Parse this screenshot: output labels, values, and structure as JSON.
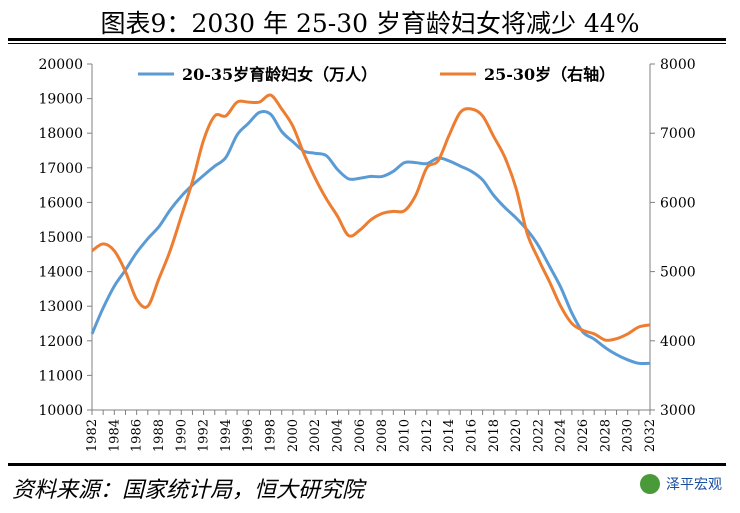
{
  "title": "图表9：2030 年 25-30 岁育龄妇女将减少 44%",
  "source": "资料来源：国家统计局，恒大研究院",
  "brand": {
    "name": "泽平宏观",
    "icon": "wechat-badge-icon"
  },
  "colors": {
    "left_series": "#5b9bd5",
    "right_series": "#ed7d31",
    "axis": "#808080"
  },
  "chart_data": {
    "type": "line",
    "x": [
      1982,
      1983,
      1984,
      1985,
      1986,
      1987,
      1988,
      1989,
      1990,
      1991,
      1992,
      1993,
      1994,
      1995,
      1996,
      1997,
      1998,
      1999,
      2000,
      2001,
      2002,
      2003,
      2004,
      2005,
      2006,
      2007,
      2008,
      2009,
      2010,
      2011,
      2012,
      2013,
      2014,
      2015,
      2016,
      2017,
      2018,
      2019,
      2020,
      2021,
      2022,
      2023,
      2024,
      2025,
      2026,
      2027,
      2028,
      2029,
      2030,
      2031,
      2032
    ],
    "x_ticks": [
      "1982",
      "1984",
      "1986",
      "1988",
      "1990",
      "1992",
      "1994",
      "1996",
      "1998",
      "2000",
      "2002",
      "2004",
      "2006",
      "2008",
      "2010",
      "2012",
      "2014",
      "2016",
      "2018",
      "2020",
      "2022",
      "2024",
      "2026",
      "2028",
      "2030",
      "2032"
    ],
    "y_left_ticks": [
      "10000",
      "11000",
      "12000",
      "13000",
      "14000",
      "15000",
      "16000",
      "17000",
      "18000",
      "19000",
      "20000"
    ],
    "y_right_ticks": [
      "3000",
      "4000",
      "5000",
      "6000",
      "7000",
      "8000"
    ],
    "ylim_left": [
      10000,
      20000
    ],
    "ylim_right": [
      3000,
      8000
    ],
    "legend_position": "top",
    "series": [
      {
        "name": "20-35岁育龄妇女（万人）",
        "axis": "left",
        "values": [
          12200,
          12950,
          13580,
          14050,
          14550,
          14950,
          15300,
          15780,
          16180,
          16500,
          16780,
          17050,
          17300,
          17950,
          18280,
          18600,
          18550,
          18050,
          17750,
          17480,
          17420,
          17350,
          16950,
          16680,
          16700,
          16750,
          16750,
          16900,
          17150,
          17150,
          17120,
          17280,
          17200,
          17050,
          16900,
          16650,
          16200,
          15850,
          15550,
          15200,
          14750,
          14150,
          13550,
          12800,
          12250,
          12050,
          11800,
          11600,
          11450,
          11350,
          11350
        ]
      },
      {
        "name": "25-30岁（右轴）",
        "axis": "right",
        "values": [
          5300,
          5400,
          5300,
          5000,
          4600,
          4500,
          4900,
          5300,
          5800,
          6300,
          6900,
          7250,
          7250,
          7450,
          7450,
          7450,
          7550,
          7350,
          7100,
          6700,
          6350,
          6050,
          5800,
          5520,
          5600,
          5750,
          5840,
          5870,
          5880,
          6100,
          6500,
          6600,
          6970,
          7300,
          7350,
          7250,
          6950,
          6650,
          6200,
          5550,
          5180,
          4850,
          4500,
          4250,
          4150,
          4100,
          4010,
          4030,
          4100,
          4200,
          4230
        ]
      }
    ]
  }
}
